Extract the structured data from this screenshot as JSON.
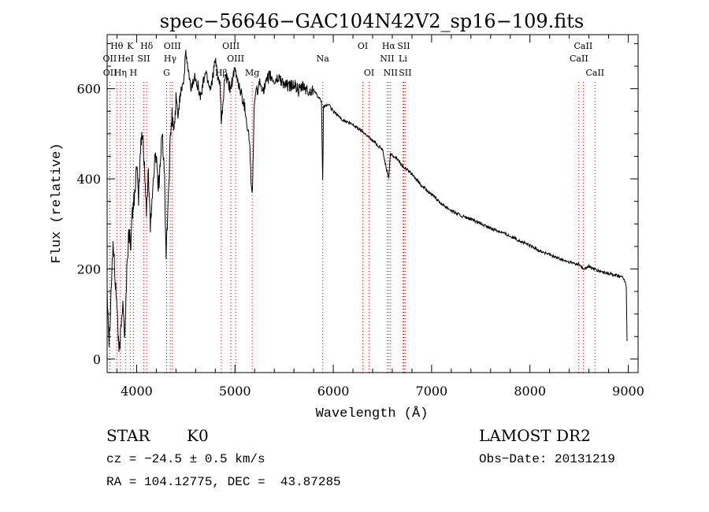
{
  "chart_data": {
    "type": "line",
    "title": "spec−56646−GAC104N42V2_sp16−109.fits",
    "xlabel": "Wavelength (Å)",
    "ylabel": "Flux (relative)",
    "xlim": [
      3700,
      9100
    ],
    "ylim": [
      -30,
      720
    ],
    "x_ticks": [
      4000,
      5000,
      6000,
      7000,
      8000,
      9000
    ],
    "y_ticks": [
      0,
      200,
      400,
      600
    ],
    "grid": false,
    "anchors": [
      [
        3700,
        160
      ],
      [
        3720,
        40
      ],
      [
        3740,
        150
      ],
      [
        3760,
        260
      ],
      [
        3780,
        180
      ],
      [
        3800,
        120
      ],
      [
        3820,
        10
      ],
      [
        3840,
        60
      ],
      [
        3860,
        140
      ],
      [
        3880,
        40
      ],
      [
        3900,
        200
      ],
      [
        3920,
        280
      ],
      [
        3940,
        260
      ],
      [
        3960,
        330
      ],
      [
        3980,
        370
      ],
      [
        4000,
        420
      ],
      [
        4020,
        360
      ],
      [
        4040,
        470
      ],
      [
        4060,
        500
      ],
      [
        4080,
        430
      ],
      [
        4100,
        320
      ],
      [
        4120,
        420
      ],
      [
        4140,
        300
      ],
      [
        4160,
        360
      ],
      [
        4180,
        430
      ],
      [
        4200,
        460
      ],
      [
        4220,
        380
      ],
      [
        4240,
        430
      ],
      [
        4260,
        500
      ],
      [
        4280,
        430
      ],
      [
        4300,
        230
      ],
      [
        4320,
        350
      ],
      [
        4340,
        470
      ],
      [
        4360,
        540
      ],
      [
        4380,
        500
      ],
      [
        4400,
        580
      ],
      [
        4420,
        540
      ],
      [
        4450,
        600
      ],
      [
        4480,
        620
      ],
      [
        4500,
        680
      ],
      [
        4550,
        600
      ],
      [
        4600,
        630
      ],
      [
        4650,
        580
      ],
      [
        4700,
        640
      ],
      [
        4750,
        600
      ],
      [
        4800,
        660
      ],
      [
        4850,
        600
      ],
      [
        4861,
        520
      ],
      [
        4900,
        630
      ],
      [
        4950,
        600
      ],
      [
        5000,
        640
      ],
      [
        5050,
        600
      ],
      [
        5100,
        560
      ],
      [
        5150,
        480
      ],
      [
        5167,
        380
      ],
      [
        5175,
        350
      ],
      [
        5190,
        500
      ],
      [
        5200,
        580
      ],
      [
        5250,
        610
      ],
      [
        5300,
        600
      ],
      [
        5350,
        630
      ],
      [
        5400,
        615
      ],
      [
        5450,
        625
      ],
      [
        5500,
        610
      ],
      [
        5550,
        605
      ],
      [
        5600,
        610
      ],
      [
        5650,
        595
      ],
      [
        5700,
        605
      ],
      [
        5750,
        590
      ],
      [
        5800,
        600
      ],
      [
        5850,
        580
      ],
      [
        5880,
        570
      ],
      [
        5893,
        380
      ],
      [
        5900,
        560
      ],
      [
        5950,
        565
      ],
      [
        6000,
        550
      ],
      [
        6100,
        530
      ],
      [
        6200,
        520
      ],
      [
        6300,
        505
      ],
      [
        6400,
        485
      ],
      [
        6500,
        465
      ],
      [
        6563,
        400
      ],
      [
        6580,
        455
      ],
      [
        6650,
        445
      ],
      [
        6700,
        430
      ],
      [
        6800,
        410
      ],
      [
        6900,
        385
      ],
      [
        7000,
        365
      ],
      [
        7100,
        345
      ],
      [
        7200,
        330
      ],
      [
        7300,
        318
      ],
      [
        7400,
        310
      ],
      [
        7500,
        300
      ],
      [
        7600,
        290
      ],
      [
        7700,
        283
      ],
      [
        7800,
        273
      ],
      [
        7900,
        262
      ],
      [
        8000,
        252
      ],
      [
        8100,
        240
      ],
      [
        8200,
        232
      ],
      [
        8300,
        222
      ],
      [
        8400,
        215
      ],
      [
        8500,
        210
      ],
      [
        8542,
        200
      ],
      [
        8600,
        205
      ],
      [
        8700,
        195
      ],
      [
        8800,
        190
      ],
      [
        8900,
        185
      ],
      [
        8960,
        178
      ],
      [
        8980,
        160
      ],
      [
        8990,
        10
      ]
    ],
    "lines": [
      {
        "name": "Hθ",
        "x": 3798,
        "row": 0,
        "color": "#000000"
      },
      {
        "name": "K",
        "x": 3934,
        "row": 0,
        "color": "#000000"
      },
      {
        "name": "Hδ",
        "x": 4102,
        "row": 0,
        "color": "#000000"
      },
      {
        "name": "OII",
        "x": 3727,
        "row": 1,
        "color": "#000000"
      },
      {
        "name": "HeI",
        "x": 3889,
        "row": 1,
        "color": "#000000"
      },
      {
        "name": "SII",
        "x": 4072,
        "row": 1,
        "color": "#000000"
      },
      {
        "name": "OII",
        "x": 3729,
        "row": 2,
        "color": "#000000"
      },
      {
        "name": "Hη",
        "x": 3835,
        "row": 2,
        "color": "#000000"
      },
      {
        "name": "H",
        "x": 3968,
        "row": 2,
        "color": "#000000"
      },
      {
        "name": "OIII",
        "x": 4363,
        "row": 0,
        "color": "#000000"
      },
      {
        "name": "Hγ",
        "x": 4341,
        "row": 1,
        "color": "#000000"
      },
      {
        "name": "G",
        "x": 4305,
        "row": 2,
        "color": "#000000"
      },
      {
        "name": "OIII",
        "x": 4959,
        "row": 0,
        "color": "#000000"
      },
      {
        "name": "OIII",
        "x": 5007,
        "row": 1,
        "color": "#000000"
      },
      {
        "name": "Hβ",
        "x": 4861,
        "row": 2,
        "color": "#000000"
      },
      {
        "name": "Mg",
        "x": 5175,
        "row": 2,
        "color": "#000000"
      },
      {
        "name": "Na",
        "x": 5893,
        "row": 1,
        "color": "#000000"
      },
      {
        "name": "OI",
        "x": 6300,
        "row": 0,
        "color": "#000000"
      },
      {
        "name": "OI",
        "x": 6364,
        "row": 2,
        "color": "#000000"
      },
      {
        "name": "Hα",
        "x": 6563,
        "row": 0,
        "color": "#000000"
      },
      {
        "name": "SII",
        "x": 6716,
        "row": 0,
        "color": "#000000"
      },
      {
        "name": "NII",
        "x": 6548,
        "row": 1,
        "color": "#000000"
      },
      {
        "name": "Li",
        "x": 6708,
        "row": 1,
        "color": "#000000"
      },
      {
        "name": "NII",
        "x": 6583,
        "row": 2,
        "color": "#000000"
      },
      {
        "name": "SII",
        "x": 6731,
        "row": 2,
        "color": "#000000"
      },
      {
        "name": "CaII",
        "x": 8542,
        "row": 0,
        "color": "#000000"
      },
      {
        "name": "CaII",
        "x": 8498,
        "row": 1,
        "color": "#000000"
      },
      {
        "name": "CaII",
        "x": 8662,
        "row": 2,
        "color": "#000000"
      }
    ],
    "colors": {
      "spectrum": "#000000",
      "guide_line": "#cc0000",
      "axes": "#000000"
    }
  },
  "info": {
    "object_type": "STAR",
    "subclass": "K0",
    "survey": "LAMOST DR2",
    "redshift": "cz = −24.5 ± 0.5 km/s",
    "obs_date": "Obs−Date: 20131219",
    "coords": "RA = 104.12775, DEC =  43.87285"
  }
}
